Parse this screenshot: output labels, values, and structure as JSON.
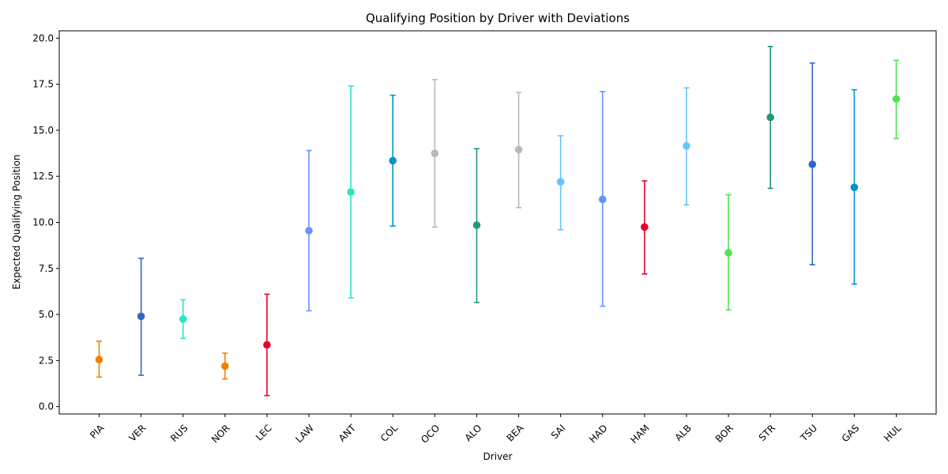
{
  "chart_data": {
    "type": "errorbar",
    "title": "Qualifying Position by Driver with Deviations",
    "xlabel": "Driver",
    "ylabel": "Expected Qualifying Position",
    "ylim": [
      -0.4,
      20.4
    ],
    "yticks": [
      0.0,
      2.5,
      5.0,
      7.5,
      10.0,
      12.5,
      15.0,
      17.5,
      20.0
    ],
    "ytick_labels": [
      "0.0",
      "2.5",
      "5.0",
      "7.5",
      "10.0",
      "12.5",
      "15.0",
      "17.5",
      "20.0"
    ],
    "grid": false,
    "points": [
      {
        "driver": "PIA",
        "value": 2.55,
        "low": 1.6,
        "high": 3.55,
        "color": "#f08000"
      },
      {
        "driver": "VER",
        "value": 4.9,
        "low": 1.7,
        "high": 8.05,
        "color": "#3366c8"
      },
      {
        "driver": "RUS",
        "value": 4.75,
        "low": 3.7,
        "high": 5.8,
        "color": "#27e5c5"
      },
      {
        "driver": "NOR",
        "value": 2.2,
        "low": 1.5,
        "high": 2.9,
        "color": "#f08000"
      },
      {
        "driver": "LEC",
        "value": 3.35,
        "low": 0.6,
        "high": 6.1,
        "color": "#e8002d"
      },
      {
        "driver": "LAW",
        "value": 9.55,
        "low": 5.2,
        "high": 13.9,
        "color": "#6692ff"
      },
      {
        "driver": "ANT",
        "value": 11.65,
        "low": 5.9,
        "high": 17.4,
        "color": "#27e5c5"
      },
      {
        "driver": "COL",
        "value": 13.35,
        "low": 9.8,
        "high": 16.9,
        "color": "#0093cc"
      },
      {
        "driver": "OCO",
        "value": 13.75,
        "low": 9.75,
        "high": 17.75,
        "color": "#b6babd"
      },
      {
        "driver": "ALO",
        "value": 9.85,
        "low": 5.65,
        "high": 14.0,
        "color": "#229971"
      },
      {
        "driver": "BEA",
        "value": 13.95,
        "low": 10.8,
        "high": 17.05,
        "color": "#b6babd"
      },
      {
        "driver": "SAI",
        "value": 12.2,
        "low": 9.6,
        "high": 14.7,
        "color": "#64c4ff"
      },
      {
        "driver": "HAD",
        "value": 11.25,
        "low": 5.45,
        "high": 17.1,
        "color": "#6692ff"
      },
      {
        "driver": "HAM",
        "value": 9.75,
        "low": 7.2,
        "high": 12.25,
        "color": "#e8002d"
      },
      {
        "driver": "ALB",
        "value": 14.15,
        "low": 10.95,
        "high": 17.3,
        "color": "#64c4ff"
      },
      {
        "driver": "BOR",
        "value": 8.35,
        "low": 5.25,
        "high": 11.5,
        "color": "#52e252"
      },
      {
        "driver": "STR",
        "value": 15.7,
        "low": 11.85,
        "high": 19.55,
        "color": "#229971"
      },
      {
        "driver": "TSU",
        "value": 13.15,
        "low": 7.7,
        "high": 18.65,
        "color": "#3366c8"
      },
      {
        "driver": "GAS",
        "value": 11.9,
        "low": 6.65,
        "high": 17.2,
        "color": "#0093cc"
      },
      {
        "driver": "HUL",
        "value": 16.7,
        "low": 14.55,
        "high": 18.8,
        "color": "#52e252"
      }
    ]
  }
}
